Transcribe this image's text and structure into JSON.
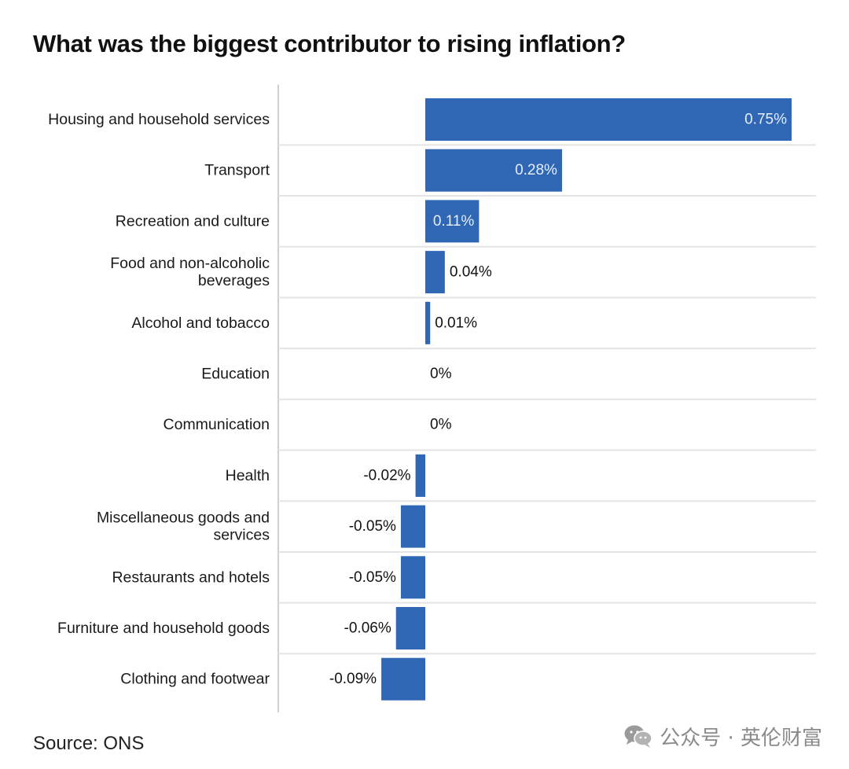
{
  "title": "What was the biggest contributor to rising inflation?",
  "source": "Source: ONS",
  "watermark": "公众号 · 英伦财富",
  "colors": {
    "bar": "#2f67b5",
    "label_inside": "#e6eefb",
    "label_outside": "#111111",
    "grid": "#e4e4e4",
    "axis": "#cfcfcf"
  },
  "chart_data": {
    "type": "bar",
    "orientation": "horizontal",
    "title": "What was the biggest contributor to rising inflation?",
    "categories": [
      "Housing and household services",
      "Transport",
      "Recreation and culture",
      "Food and non-alcoholic beverages",
      "Alcohol and tobacco",
      "Education",
      "Communication",
      "Health",
      "Miscellaneous goods and services",
      "Restaurants and hotels",
      "Furniture and household goods",
      "Clothing and footwear"
    ],
    "category_lines": [
      [
        "Housing and household services"
      ],
      [
        "Transport"
      ],
      [
        "Recreation and culture"
      ],
      [
        "Food and non-alcoholic",
        "beverages"
      ],
      [
        "Alcohol and tobacco"
      ],
      [
        "Education"
      ],
      [
        "Communication"
      ],
      [
        "Health"
      ],
      [
        "Miscellaneous goods and",
        "services"
      ],
      [
        "Restaurants and hotels"
      ],
      [
        "Furniture and household goods"
      ],
      [
        "Clothing and footwear"
      ]
    ],
    "values": [
      0.75,
      0.28,
      0.11,
      0.04,
      0.01,
      0,
      0,
      -0.02,
      -0.05,
      -0.05,
      -0.06,
      -0.09
    ],
    "value_labels": [
      "0.75%",
      "0.28%",
      "0.11%",
      "0.04%",
      "0.01%",
      "0%",
      "0%",
      "-0.02%",
      "-0.05%",
      "-0.05%",
      "-0.06%",
      "-0.09%"
    ],
    "xlim": [
      -0.3,
      0.8
    ],
    "grid": true,
    "legend": "none",
    "source": "Source: ONS"
  }
}
